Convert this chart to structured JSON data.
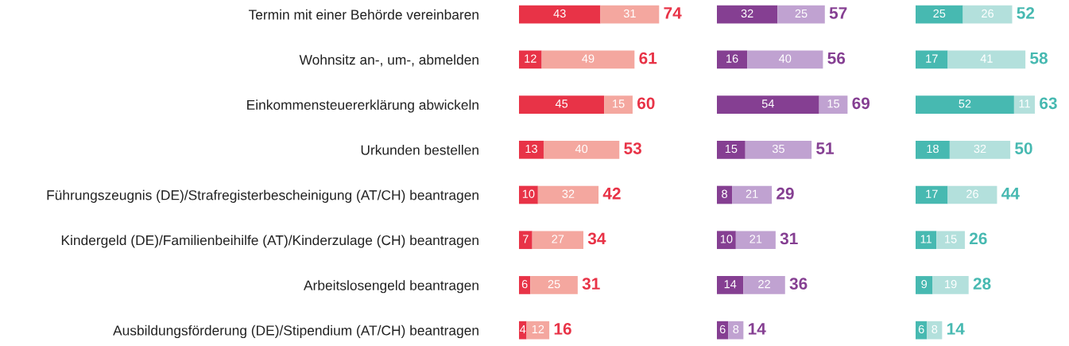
{
  "chart_data": [
    {
      "type": "bar",
      "orientation": "horizontal",
      "stacked": true,
      "data_labels": true,
      "tick_labels": "y",
      "categories": [
        "Termin mit einer Behörde vereinbaren",
        "Wohnsitz an-, um-, abmelden",
        "Einkommensteuererklärung abwickeln",
        "Urkunden bestellen",
        "Führungszeugnis (DE)/Strafregisterbescheinigung (AT/CH) beantragen",
        "Kindergeld (DE)/Familienbeihilfe (AT)/Kinderzulage (CH) beantragen",
        "Arbeitslosengeld beantragen",
        "Ausbildungsförderung (DE)/Stipendium (AT/CH) beantragen"
      ],
      "series": [
        {
          "color": "#e83347",
          "values": [
            43,
            12,
            45,
            13,
            10,
            7,
            6,
            4
          ]
        },
        {
          "color": "#f4a79f",
          "values": [
            31,
            49,
            15,
            40,
            32,
            27,
            25,
            12
          ]
        }
      ],
      "totals": [
        "74",
        "61",
        "60",
        "53",
        "42",
        "34",
        "31",
        "16"
      ]
    },
    {
      "type": "bar",
      "orientation": "horizontal",
      "stacked": true,
      "data_labels": true,
      "tick_labels": false,
      "categories": [
        null,
        null,
        null,
        null,
        null,
        null,
        null,
        null
      ],
      "series": [
        {
          "color": "#853f92",
          "values": [
            32,
            16,
            54,
            15,
            8,
            10,
            14,
            6
          ]
        },
        {
          "color": "#c0a2d1",
          "values": [
            25,
            40,
            15,
            35,
            21,
            21,
            22,
            8
          ]
        }
      ],
      "totals": [
        "57",
        "56",
        "69",
        "51",
        "29",
        "31",
        "36",
        "14"
      ]
    },
    {
      "type": "bar",
      "orientation": "horizontal",
      "stacked": true,
      "data_labels": true,
      "tick_labels": false,
      "categories": [
        null,
        null,
        null,
        null,
        null,
        null,
        null,
        null
      ],
      "series": [
        {
          "color": "#47b9b1",
          "values": [
            25,
            17,
            52,
            18,
            17,
            11,
            9,
            6
          ]
        },
        {
          "color": "#b3e0dc",
          "values": [
            26,
            41,
            11,
            32,
            26,
            15,
            19,
            8
          ]
        }
      ],
      "totals": [
        "52",
        "58",
        "63",
        "50",
        "44",
        "26",
        "28",
        "14"
      ]
    }
  ]
}
